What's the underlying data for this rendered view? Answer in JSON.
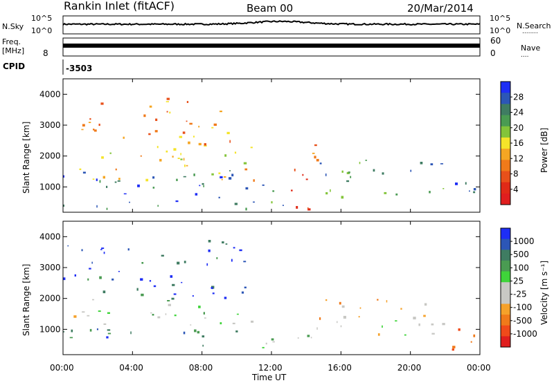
{
  "header": {
    "station": "Rankin Inlet (fitACF)",
    "beam": "Beam 00",
    "date": "20/Mar/2014"
  },
  "noise_panel": {
    "left_label": "N.Sky",
    "left_ticks": [
      "10^5",
      "10^0"
    ],
    "right_ticks": [
      "10^5",
      "10^0"
    ],
    "right_label": "N.Search",
    "right_dots": "........"
  },
  "freq_panel": {
    "left_label_1": "Freq.",
    "left_label_2": "[MHz]",
    "left_ticks": [
      "8"
    ],
    "right_ticks": [
      "60",
      "0"
    ],
    "right_label": "Nave",
    "right_dots": "....",
    "freq_value_mhz": 10.3,
    "nave_value": 35
  },
  "cpid": {
    "label": "CPID",
    "value": "-3503"
  },
  "x_axis": {
    "label": "Time UT",
    "ticks": [
      "00:00",
      "04:00",
      "08:00",
      "12:00",
      "16:00",
      "20:00",
      "00:00"
    ],
    "range_hours": [
      0,
      24
    ]
  },
  "y_axis": {
    "label": "Slant Range [km]",
    "ticks": [
      "1000",
      "2000",
      "3000",
      "4000"
    ],
    "range_km": [
      180,
      4500
    ]
  },
  "colors": {
    "frame": "#000000",
    "background": "#ffffff",
    "power_scale": [
      "#1e2ef5",
      "#2c56b6",
      "#3f7c62",
      "#4a9b52",
      "#83c43a",
      "#f5e42a",
      "#f5a623",
      "#f07a1a",
      "#e8501a",
      "#e02a17",
      "#e01e1e"
    ],
    "velocity_scale": [
      "#e01e1e",
      "#f04a1a",
      "#f07a1a",
      "#f5a12a",
      "#c8c8c4",
      "#c8c8c4",
      "#3fd43a",
      "#4a9b52",
      "#3f7c62",
      "#2c56b6",
      "#1e2ef5"
    ]
  },
  "power_colorbar": {
    "label": "Power [dB]",
    "ticks": [
      "28",
      "24",
      "20",
      "16",
      "12",
      "8",
      "4"
    ]
  },
  "velocity_colorbar": {
    "label": "Velocity [m s⁻¹]",
    "ticks": [
      "1000",
      "500",
      "100",
      "25",
      "-25",
      "-100",
      "-500",
      "-1000"
    ]
  },
  "chart_data": {
    "type": "heatmap",
    "panels": [
      {
        "name": "Power",
        "units": "dB",
        "range": [
          0,
          30
        ],
        "x": "Time UT (hours)",
        "y": "Slant Range (km)",
        "regions": [
          {
            "t": [
              0,
              11
            ],
            "r": [
              250,
              1600
            ],
            "value": 26
          },
          {
            "t": [
              0,
              11
            ],
            "r": [
              1200,
              2500
            ],
            "value": 14
          },
          {
            "t": [
              1,
              10
            ],
            "r": [
              2400,
              4000
            ],
            "value": 10
          },
          {
            "t": [
              11,
              13.5
            ],
            "r": [
              400,
              1100
            ],
            "value": 22
          },
          {
            "t": [
              13,
              15
            ],
            "r": [
              300,
              2800
            ],
            "value": 6
          },
          {
            "t": [
              14.5,
              22
            ],
            "r": [
              700,
              2000
            ],
            "value": 22
          },
          {
            "t": [
              21.5,
              24
            ],
            "r": [
              300,
              1200
            ],
            "value": 28
          }
        ]
      },
      {
        "name": "Velocity",
        "units": "m/s",
        "range": [
          -1000,
          1000
        ],
        "x": "Time UT (hours)",
        "y": "Slant Range (km)",
        "regions": [
          {
            "t": [
              0,
              11
            ],
            "r": [
              500,
              1100
            ],
            "value": 600
          },
          {
            "t": [
              0,
              11
            ],
            "r": [
              1100,
              2000
            ],
            "value": 0
          },
          {
            "t": [
              0,
              10.5
            ],
            "r": [
              2000,
              4000
            ],
            "value": 800
          },
          {
            "t": [
              11,
              15
            ],
            "r": [
              400,
              1200
            ],
            "value": 200
          },
          {
            "t": [
              14.5,
              22
            ],
            "r": [
              1300,
              2100
            ],
            "value": -300
          },
          {
            "t": [
              14,
              22
            ],
            "r": [
              700,
              1300
            ],
            "value": 0
          },
          {
            "t": [
              21.5,
              24
            ],
            "r": [
              300,
              1200
            ],
            "value": -600
          }
        ]
      }
    ]
  }
}
